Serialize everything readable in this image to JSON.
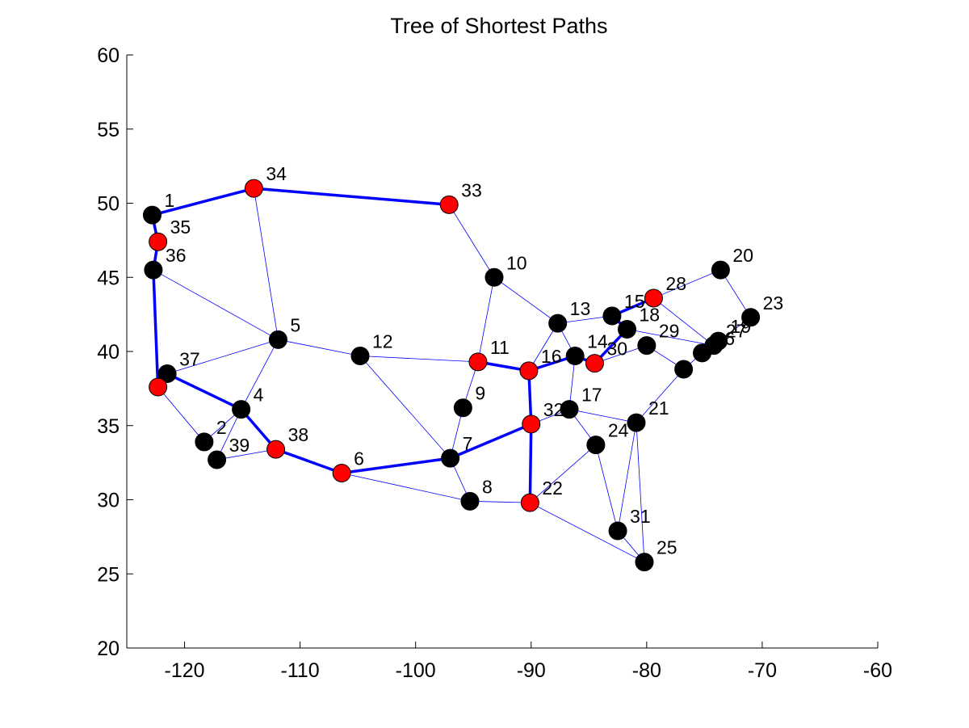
{
  "chart_data": {
    "type": "scatter",
    "title": "Tree of Shortest Paths",
    "xlabel": "",
    "ylabel": "",
    "xlim": [
      -125,
      -60
    ],
    "ylim": [
      20,
      60
    ],
    "xticks": [
      -120,
      -110,
      -100,
      -90,
      -80,
      -70,
      -60
    ],
    "yticks": [
      20,
      25,
      30,
      35,
      40,
      45,
      50,
      55,
      60
    ],
    "xtick_labels": [
      "-120",
      "-110",
      "-100",
      "-90",
      "-80",
      "-70",
      "-60"
    ],
    "ytick_labels": [
      "20",
      "25",
      "30",
      "35",
      "40",
      "45",
      "50",
      "55",
      "60"
    ],
    "grid": false,
    "colors": {
      "edge": "#0000ff",
      "path_node": "#ff0000",
      "other_node": "#000000"
    },
    "nodes": [
      {
        "id": "1",
        "x": -122.8,
        "y": 49.2,
        "highlight": false
      },
      {
        "id": "2",
        "x": -118.3,
        "y": 33.9,
        "highlight": false
      },
      {
        "id": "4",
        "x": -115.1,
        "y": 36.1,
        "highlight": false
      },
      {
        "id": "5",
        "x": -111.9,
        "y": 40.8,
        "highlight": false
      },
      {
        "id": "6",
        "x": -106.4,
        "y": 31.8,
        "highlight": true
      },
      {
        "id": "7",
        "x": -97.0,
        "y": 32.8,
        "highlight": false
      },
      {
        "id": "8",
        "x": -95.3,
        "y": 29.9,
        "highlight": false
      },
      {
        "id": "9",
        "x": -95.9,
        "y": 36.2,
        "highlight": false
      },
      {
        "id": "10",
        "x": -93.2,
        "y": 45.0,
        "highlight": false
      },
      {
        "id": "11",
        "x": -94.6,
        "y": 39.3,
        "highlight": true
      },
      {
        "id": "12",
        "x": -104.8,
        "y": 39.7,
        "highlight": false
      },
      {
        "id": "13",
        "x": -87.7,
        "y": 41.9,
        "highlight": false
      },
      {
        "id": "14",
        "x": -86.2,
        "y": 39.7,
        "highlight": false
      },
      {
        "id": "15",
        "x": -83.0,
        "y": 42.4,
        "highlight": false
      },
      {
        "id": "16",
        "x": -90.2,
        "y": 38.7,
        "highlight": true
      },
      {
        "id": "17",
        "x": -86.7,
        "y": 36.1,
        "highlight": false
      },
      {
        "id": "18",
        "x": -81.7,
        "y": 41.5,
        "highlight": false
      },
      {
        "id": "19",
        "x": -73.8,
        "y": 40.7,
        "highlight": false
      },
      {
        "id": "20",
        "x": -73.6,
        "y": 45.5,
        "highlight": false
      },
      {
        "id": "21",
        "x": -80.9,
        "y": 35.2,
        "highlight": false
      },
      {
        "id": "22",
        "x": -90.1,
        "y": 29.8,
        "highlight": true
      },
      {
        "id": "23",
        "x": -71.0,
        "y": 42.3,
        "highlight": false
      },
      {
        "id": "24",
        "x": -84.4,
        "y": 33.7,
        "highlight": false
      },
      {
        "id": "25",
        "x": -80.2,
        "y": 25.8,
        "highlight": false
      },
      {
        "id": "26",
        "x": -75.2,
        "y": 39.9,
        "highlight": false
      },
      {
        "id": "27",
        "x": -74.2,
        "y": 40.4,
        "highlight": false
      },
      {
        "id": "28",
        "x": -79.4,
        "y": 43.6,
        "highlight": true
      },
      {
        "id": "29",
        "x": -80.0,
        "y": 40.4,
        "highlight": false
      },
      {
        "id": "30",
        "x": -84.5,
        "y": 39.2,
        "highlight": true
      },
      {
        "id": "31",
        "x": -82.5,
        "y": 27.9,
        "highlight": false
      },
      {
        "id": "32",
        "x": -90.0,
        "y": 35.1,
        "highlight": true
      },
      {
        "id": "33",
        "x": -97.1,
        "y": 49.9,
        "highlight": true
      },
      {
        "id": "34",
        "x": -114.0,
        "y": 51.0,
        "highlight": true
      },
      {
        "id": "35",
        "x": -122.3,
        "y": 47.4,
        "highlight": true
      },
      {
        "id": "36",
        "x": -122.7,
        "y": 45.5,
        "highlight": false
      },
      {
        "id": "37",
        "x": -121.5,
        "y": 38.5,
        "highlight": false
      },
      {
        "id": "38",
        "x": -112.1,
        "y": 33.4,
        "highlight": true
      },
      {
        "id": "39",
        "x": -117.2,
        "y": 32.7,
        "highlight": false
      },
      {
        "id": "",
        "x": -76.8,
        "y": 38.8,
        "highlight": false
      },
      {
        "id": "",
        "x": -122.3,
        "y": 37.6,
        "highlight": true
      }
    ],
    "edges": [
      [
        -122.8,
        49.2,
        -122.3,
        47.4
      ],
      [
        -122.3,
        47.4,
        -122.7,
        45.5
      ],
      [
        -122.7,
        45.5,
        -122.3,
        37.6
      ],
      [
        -122.7,
        45.5,
        -111.9,
        40.8
      ],
      [
        -114.0,
        51.0,
        -111.9,
        40.8
      ],
      [
        -121.5,
        38.5,
        -111.9,
        40.8
      ],
      [
        -111.9,
        40.8,
        -115.1,
        36.1
      ],
      [
        -111.9,
        40.8,
        -104.8,
        39.7
      ],
      [
        -104.8,
        39.7,
        -94.6,
        39.3
      ],
      [
        -104.8,
        39.7,
        -97.0,
        32.8
      ],
      [
        -122.3,
        37.6,
        -118.3,
        33.9
      ],
      [
        -118.3,
        33.9,
        -115.1,
        36.1
      ],
      [
        -117.2,
        32.7,
        -112.1,
        33.4
      ],
      [
        -115.1,
        36.1,
        -117.2,
        32.7
      ],
      [
        -106.4,
        31.8,
        -95.3,
        29.9
      ],
      [
        -97.0,
        32.8,
        -95.3,
        29.9
      ],
      [
        -97.0,
        32.8,
        -95.9,
        36.2
      ],
      [
        -95.9,
        36.2,
        -94.6,
        39.3
      ],
      [
        -95.3,
        29.9,
        -90.1,
        29.8
      ],
      [
        -97.1,
        49.9,
        -93.2,
        45.0
      ],
      [
        -93.2,
        45.0,
        -94.6,
        39.3
      ],
      [
        -93.2,
        45.0,
        -87.7,
        41.9
      ],
      [
        -87.7,
        41.9,
        -90.2,
        38.7
      ],
      [
        -87.7,
        41.9,
        -83.0,
        42.4
      ],
      [
        -87.7,
        41.9,
        -86.2,
        39.7
      ],
      [
        -86.2,
        39.7,
        -86.7,
        36.1
      ],
      [
        -90.0,
        35.1,
        -86.7,
        36.1
      ],
      [
        -86.7,
        36.1,
        -84.4,
        33.7
      ],
      [
        -86.7,
        36.1,
        -80.9,
        35.2
      ],
      [
        -84.4,
        33.7,
        -90.1,
        29.8
      ],
      [
        -84.4,
        33.7,
        -82.5,
        27.9
      ],
      [
        -80.9,
        35.2,
        -82.5,
        27.9
      ],
      [
        -80.9,
        35.2,
        -76.8,
        38.8
      ],
      [
        -90.1,
        29.8,
        -80.2,
        25.8
      ],
      [
        -82.5,
        27.9,
        -80.2,
        25.8
      ],
      [
        -80.9,
        35.2,
        -80.2,
        25.8
      ],
      [
        -79.4,
        43.6,
        -73.6,
        45.5
      ],
      [
        -73.6,
        45.5,
        -71.0,
        42.3
      ],
      [
        -71.0,
        42.3,
        -73.8,
        40.7
      ],
      [
        -79.4,
        43.6,
        -74.2,
        40.4
      ],
      [
        -81.7,
        41.5,
        -74.2,
        40.4
      ],
      [
        -80.0,
        40.4,
        -76.8,
        38.8
      ],
      [
        -76.8,
        38.8,
        -75.2,
        39.9
      ],
      [
        -83.0,
        42.4,
        -79.4,
        43.6
      ],
      [
        -84.5,
        39.2,
        -80.0,
        40.4
      ]
    ],
    "path_edges": [
      [
        [
          -122.3,
          37.6
        ],
        [
          -122.7,
          45.5
        ],
        [
          -122.3,
          47.4
        ],
        [
          -122.8,
          49.2
        ],
        [
          -114.0,
          51.0
        ],
        [
          -97.1,
          49.9
        ]
      ],
      [
        [
          -122.3,
          37.6
        ],
        [
          -121.5,
          38.5
        ],
        [
          -115.1,
          36.1
        ],
        [
          -112.1,
          33.4
        ],
        [
          -106.4,
          31.8
        ],
        [
          -97.0,
          32.8
        ],
        [
          -90.0,
          35.1
        ],
        [
          -90.2,
          38.7
        ],
        [
          -94.6,
          39.3
        ]
      ],
      [
        [
          -90.0,
          35.1
        ],
        [
          -90.1,
          29.8
        ]
      ],
      [
        [
          -90.2,
          38.7
        ],
        [
          -86.2,
          39.7
        ],
        [
          -84.5,
          39.2
        ],
        [
          -81.7,
          41.5
        ],
        [
          -83.0,
          42.4
        ],
        [
          -79.4,
          43.6
        ]
      ],
      [
        [
          -75.2,
          39.9
        ],
        [
          -73.8,
          40.7
        ]
      ]
    ]
  }
}
